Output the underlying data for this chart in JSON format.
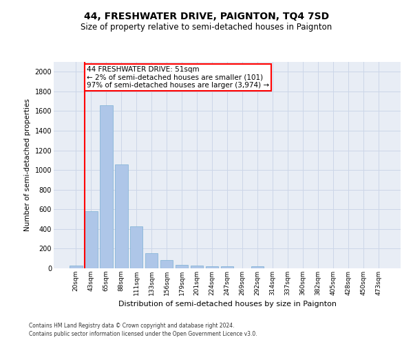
{
  "title": "44, FRESHWATER DRIVE, PAIGNTON, TQ4 7SD",
  "subtitle": "Size of property relative to semi-detached houses in Paignton",
  "xlabel": "Distribution of semi-detached houses by size in Paignton",
  "ylabel": "Number of semi-detached properties",
  "footnote1": "Contains HM Land Registry data © Crown copyright and database right 2024.",
  "footnote2": "Contains public sector information licensed under the Open Government Licence v3.0.",
  "annotation_line1": "44 FRESHWATER DRIVE: 51sqm",
  "annotation_line2": "← 2% of semi-detached houses are smaller (101)",
  "annotation_line3": "97% of semi-detached houses are larger (3,974) →",
  "bar_labels": [
    "20sqm",
    "43sqm",
    "65sqm",
    "88sqm",
    "111sqm",
    "133sqm",
    "156sqm",
    "179sqm",
    "201sqm",
    "224sqm",
    "247sqm",
    "269sqm",
    "292sqm",
    "314sqm",
    "337sqm",
    "360sqm",
    "382sqm",
    "405sqm",
    "428sqm",
    "450sqm",
    "473sqm"
  ],
  "bar_values": [
    25,
    580,
    1660,
    1060,
    430,
    155,
    85,
    35,
    30,
    20,
    20,
    0,
    20,
    0,
    0,
    0,
    0,
    0,
    0,
    0,
    0
  ],
  "bar_color": "#aec6e8",
  "bar_edge_color": "#7aafd4",
  "ylim": [
    0,
    2100
  ],
  "yticks": [
    0,
    200,
    400,
    600,
    800,
    1000,
    1200,
    1400,
    1600,
    1800,
    2000
  ],
  "grid_color": "#ccd6e8",
  "background_color": "#e8edf5",
  "title_fontsize": 10,
  "subtitle_fontsize": 8.5,
  "annotation_fontsize": 7.5,
  "ylabel_fontsize": 7.5,
  "xlabel_fontsize": 8,
  "footnote_fontsize": 5.5,
  "tick_fontsize": 6.5
}
